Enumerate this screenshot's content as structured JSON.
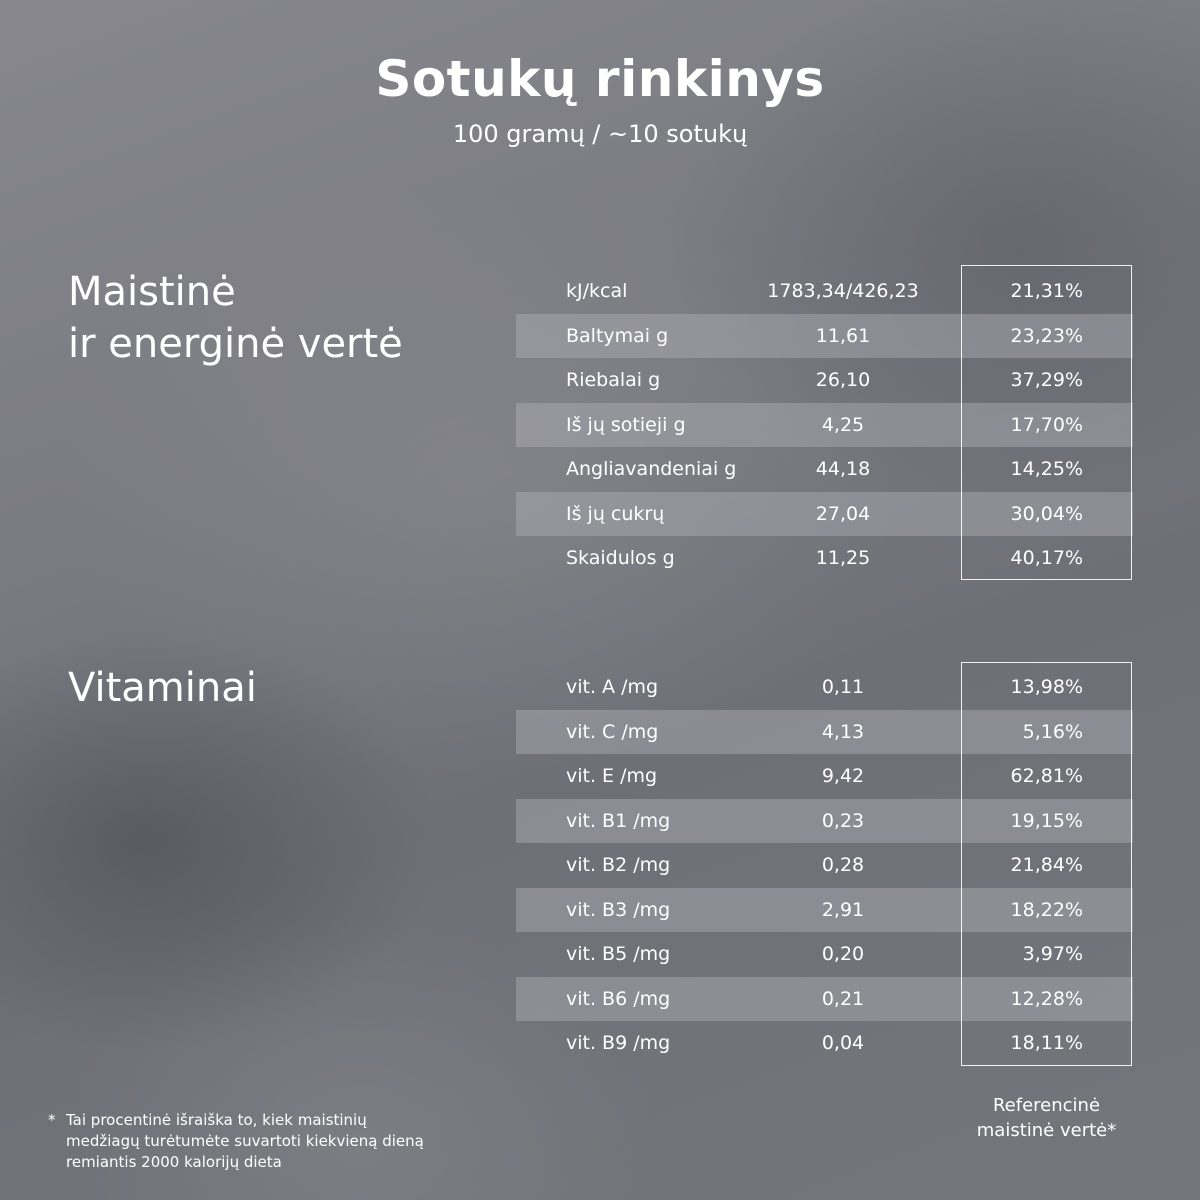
{
  "header": {
    "title": "Sotukų rinkinys",
    "subtitle": "100 gramų / ~10 sotukų"
  },
  "nutrition": {
    "heading_line1": "Maistinė",
    "heading_line2": "ir energinė vertė",
    "rows": [
      {
        "name": "kJ/kcal",
        "value": "1783,34/426,23",
        "percent": "21,31%"
      },
      {
        "name": "Baltymai g",
        "value": "11,61",
        "percent": "23,23%"
      },
      {
        "name": "Riebalai g",
        "value": "26,10",
        "percent": "37,29%"
      },
      {
        "name": "Iš jų sotieji g",
        "value": "4,25",
        "percent": "17,70%"
      },
      {
        "name": "Angliavandeniai g",
        "value": "44,18",
        "percent": "14,25%"
      },
      {
        "name": "Iš jų cukrų",
        "value": "27,04",
        "percent": "30,04%"
      },
      {
        "name": "Skaidulos g",
        "value": "11,25",
        "percent": "40,17%"
      }
    ]
  },
  "vitamins": {
    "heading": "Vitaminai",
    "rows": [
      {
        "name": "vit. A /mg",
        "value": "0,11",
        "percent": "13,98%"
      },
      {
        "name": "vit. C /mg",
        "value": "4,13",
        "percent": "5,16%"
      },
      {
        "name": "vit. E /mg",
        "value": "9,42",
        "percent": "62,81%"
      },
      {
        "name": "vit. B1 /mg",
        "value": "0,23",
        "percent": "19,15%"
      },
      {
        "name": "vit. B2 /mg",
        "value": "0,28",
        "percent": "21,84%"
      },
      {
        "name": "vit. B3 /mg",
        "value": "2,91",
        "percent": "18,22%"
      },
      {
        "name": "vit. B5 /mg",
        "value": "0,20",
        "percent": "3,97%"
      },
      {
        "name": "vit. B6 /mg",
        "value": "0,21",
        "percent": "12,28%"
      },
      {
        "name": "vit. B9 /mg",
        "value": "0,04",
        "percent": "18,11%"
      }
    ]
  },
  "reference_label_line1": "Referencinė",
  "reference_label_line2": "maistinė vertė*",
  "footnote": {
    "star": "*",
    "text": "Tai procentinė išraiška to, kiek maistinių medžiagų turėtumėte suvartoti kiekvieną dieną remiantis 2000 kalorijų dieta"
  }
}
